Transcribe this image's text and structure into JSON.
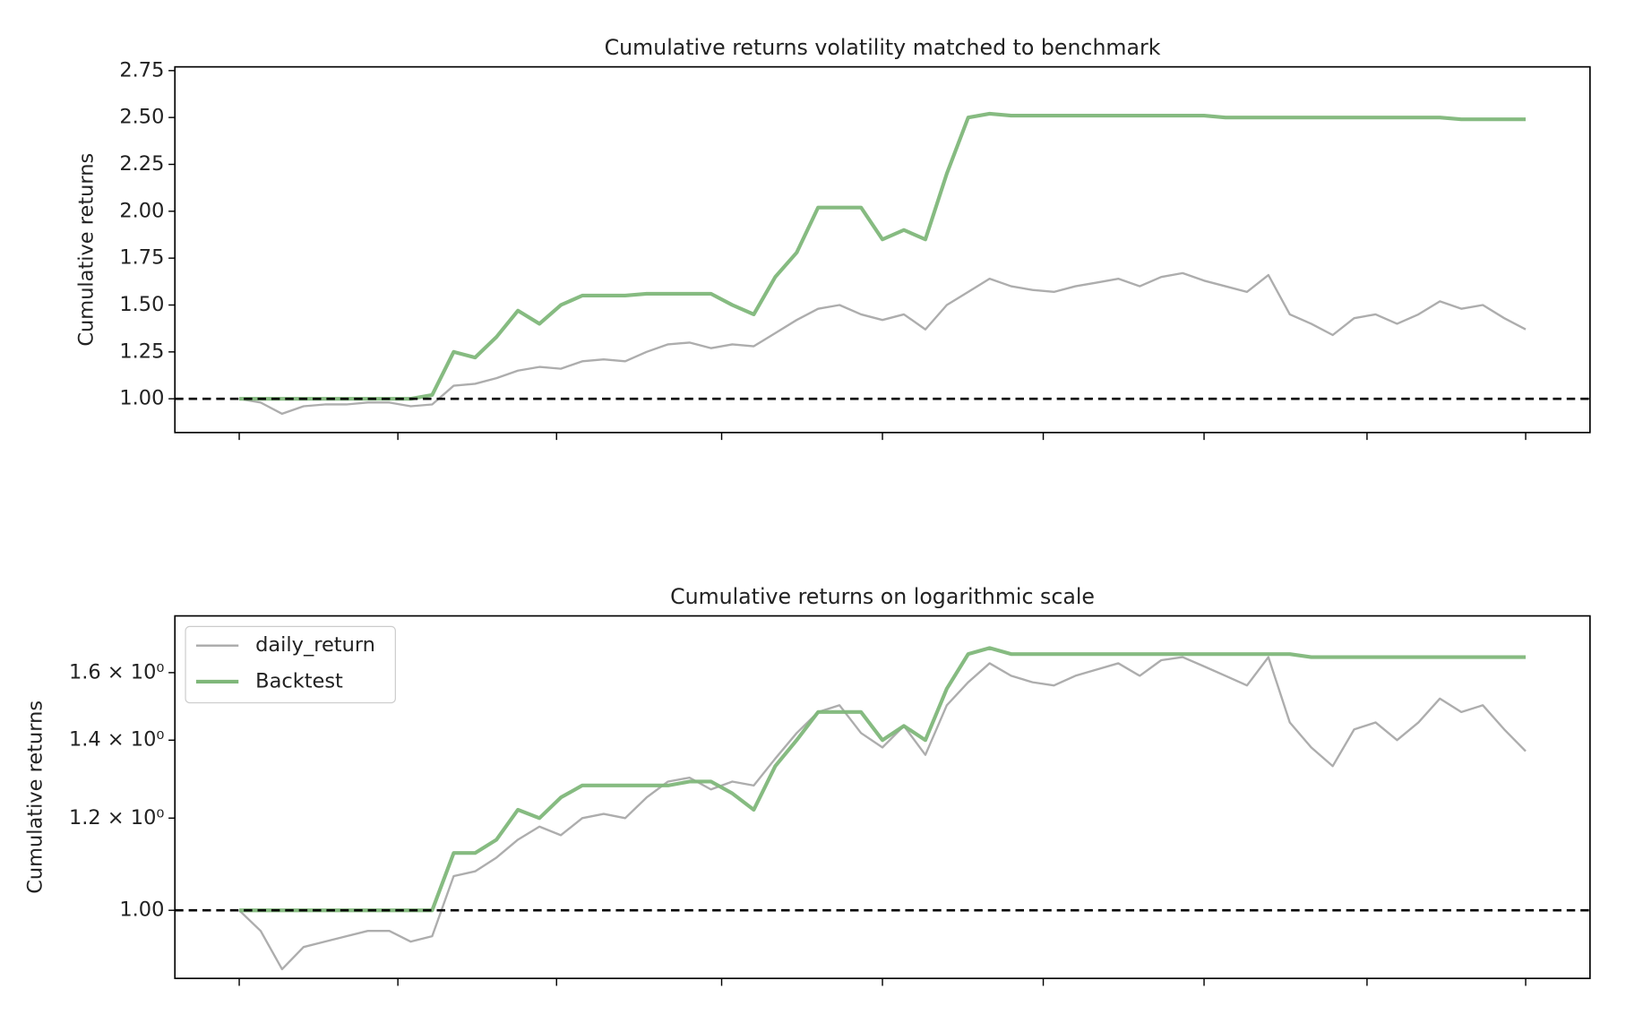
{
  "chart_data": [
    {
      "type": "line",
      "title": "Cumulative returns volatility matched to benchmark",
      "y_label": "Cumulative returns",
      "xlim": [
        -3,
        63
      ],
      "xticks": [
        0,
        7.4,
        14.8,
        22.5,
        30,
        37.5,
        45,
        52.6,
        60
      ],
      "ylim": [
        0.82,
        2.77
      ],
      "yticks": [
        {
          "value": 1,
          "label": "1.00"
        },
        1.25,
        {
          "value": 1.5,
          "label": "1.50"
        },
        1.75,
        {
          "value": 2,
          "label": "2.00"
        },
        2.25,
        {
          "value": 2.5,
          "label": "2.50"
        },
        2.75
      ],
      "baseline": 1,
      "log_scale": false,
      "legend": false,
      "series": [
        {
          "color": "#a9a9a9",
          "width": 2,
          "values": [
            1.0,
            0.98,
            0.92,
            0.96,
            0.97,
            0.97,
            0.98,
            0.98,
            0.96,
            0.97,
            1.07,
            1.08,
            1.11,
            1.15,
            1.17,
            1.16,
            1.2,
            1.21,
            1.2,
            1.25,
            1.29,
            1.3,
            1.27,
            1.29,
            1.28,
            1.35,
            1.42,
            1.48,
            1.5,
            1.45,
            1.42,
            1.45,
            1.37,
            1.5,
            1.57,
            1.64,
            1.6,
            1.58,
            1.57,
            1.6,
            1.62,
            1.64,
            1.6,
            1.65,
            1.67,
            1.63,
            1.6,
            1.57,
            1.66,
            1.45,
            1.4,
            1.34,
            1.43,
            1.45,
            1.4,
            1.45,
            1.52,
            1.48,
            1.5,
            1.43,
            1.37
          ]
        },
        {
          "color": "#7fb77a",
          "width": 3.5,
          "values": [
            1.0,
            1.0,
            1.0,
            1.0,
            1.0,
            1.0,
            1.0,
            1.0,
            1.0,
            1.02,
            1.25,
            1.22,
            1.33,
            1.47,
            1.4,
            1.5,
            1.55,
            1.55,
            1.55,
            1.56,
            1.56,
            1.56,
            1.56,
            1.5,
            1.45,
            1.65,
            1.78,
            2.02,
            2.02,
            2.02,
            1.85,
            1.9,
            1.85,
            2.2,
            2.5,
            2.52,
            2.51,
            2.51,
            2.51,
            2.51,
            2.51,
            2.51,
            2.51,
            2.51,
            2.51,
            2.51,
            2.5,
            2.5,
            2.5,
            2.5,
            2.5,
            2.5,
            2.5,
            2.5,
            2.5,
            2.5,
            2.5,
            2.49,
            2.49,
            2.49,
            2.49
          ]
        }
      ]
    },
    {
      "type": "line",
      "title": "Cumulative returns on logarithmic scale",
      "y_label": "Cumulative returns",
      "xlim": [
        -3,
        63
      ],
      "xticks": [
        0,
        7.4,
        14.8,
        22.5,
        30,
        37.5,
        45,
        52.6,
        60
      ],
      "ylim": [
        0.874,
        1.79
      ],
      "yticks": [
        {
          "value": 1,
          "label": "1.00"
        },
        {
          "value": 1.2,
          "label": "1.2 × 10⁰"
        },
        {
          "value": 1.4,
          "label": "1.4 × 10⁰"
        },
        {
          "value": 1.6,
          "label": "1.6 × 10⁰"
        }
      ],
      "baseline": 1,
      "log_scale": true,
      "legend": "upper left",
      "series": [
        {
          "name": "daily_return",
          "color": "#a9a9a9",
          "width": 2,
          "values": [
            1.0,
            0.96,
            0.89,
            0.93,
            0.94,
            0.95,
            0.96,
            0.96,
            0.94,
            0.95,
            1.07,
            1.08,
            1.11,
            1.15,
            1.18,
            1.16,
            1.2,
            1.21,
            1.2,
            1.25,
            1.29,
            1.3,
            1.27,
            1.29,
            1.28,
            1.35,
            1.42,
            1.48,
            1.5,
            1.42,
            1.38,
            1.44,
            1.36,
            1.5,
            1.57,
            1.63,
            1.59,
            1.57,
            1.56,
            1.59,
            1.61,
            1.63,
            1.59,
            1.64,
            1.65,
            1.62,
            1.59,
            1.56,
            1.65,
            1.45,
            1.38,
            1.33,
            1.43,
            1.45,
            1.4,
            1.45,
            1.52,
            1.48,
            1.5,
            1.43,
            1.37
          ]
        },
        {
          "name": "Backtest",
          "color": "#7fb77a",
          "width": 3.5,
          "values": [
            1.0,
            1.0,
            1.0,
            1.0,
            1.0,
            1.0,
            1.0,
            1.0,
            1.0,
            1.0,
            1.12,
            1.12,
            1.15,
            1.22,
            1.2,
            1.25,
            1.28,
            1.28,
            1.28,
            1.28,
            1.28,
            1.29,
            1.29,
            1.26,
            1.22,
            1.33,
            1.4,
            1.48,
            1.48,
            1.48,
            1.4,
            1.44,
            1.4,
            1.55,
            1.66,
            1.68,
            1.66,
            1.66,
            1.66,
            1.66,
            1.66,
            1.66,
            1.66,
            1.66,
            1.66,
            1.66,
            1.66,
            1.66,
            1.66,
            1.66,
            1.65,
            1.65,
            1.65,
            1.65,
            1.65,
            1.65,
            1.65,
            1.65,
            1.65,
            1.65,
            1.65
          ]
        }
      ]
    }
  ]
}
